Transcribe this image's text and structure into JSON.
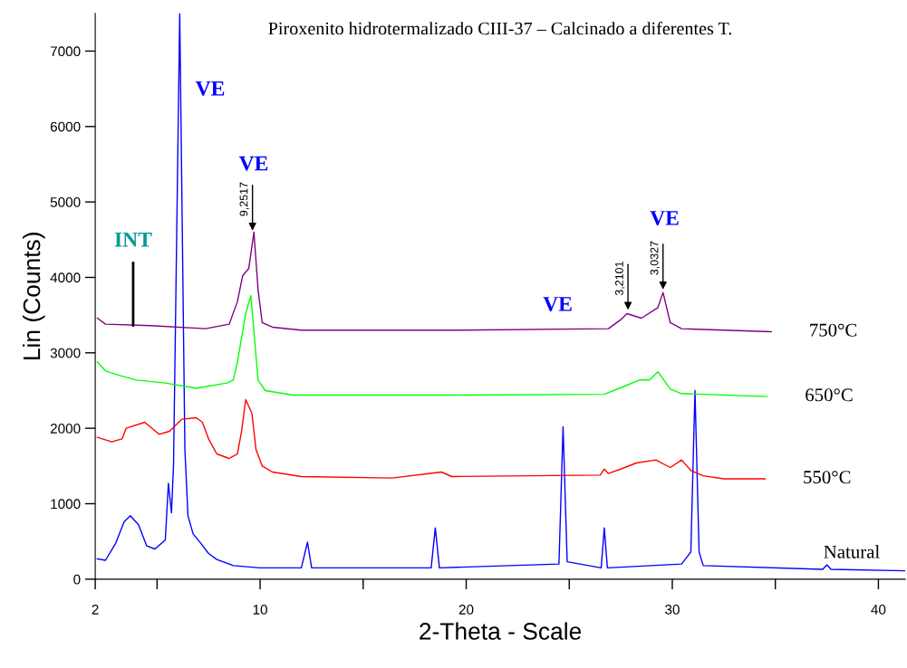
{
  "chart_data": {
    "type": "line",
    "title": "Piroxenito hidrotermalizado CIII-37 – Calcinado a diferentes T.",
    "xlabel": "2-Theta - Scale",
    "ylabel": "Lin (Counts)",
    "xlim": [
      2,
      41.3
    ],
    "ylim": [
      0,
      7500
    ],
    "xticks": [
      2,
      {
        "value": 5,
        "label": null
      },
      10,
      {
        "value": 15,
        "label": null
      },
      20,
      {
        "value": 25,
        "label": null
      },
      30,
      {
        "value": 35,
        "label": null
      },
      40
    ],
    "yticks": [
      0,
      1000,
      2000,
      3000,
      4000,
      5000,
      6000,
      7000
    ],
    "grid": false,
    "legend": false,
    "series": [
      {
        "name": "Natural",
        "color": "#0000ff",
        "x": [
          2.1,
          2.5,
          3.0,
          3.4,
          3.7,
          4.1,
          4.5,
          4.9,
          5.4,
          5.55,
          5.7,
          5.8,
          6.1,
          6.35,
          6.5,
          6.75,
          7.05,
          7.5,
          7.9,
          8.7,
          10,
          12.0,
          12.3,
          12.5,
          18.3,
          18.5,
          18.7,
          24.5,
          24.7,
          24.9,
          26.55,
          26.7,
          26.85,
          30.45,
          30.9,
          31.1,
          31.3,
          31.5,
          37.3,
          37.5,
          37.7,
          41.3
        ],
        "values": [
          270,
          250,
          480,
          760,
          840,
          720,
          440,
          400,
          520,
          1270,
          880,
          1520,
          7500,
          1720,
          840,
          600,
          500,
          340,
          260,
          180,
          150,
          150,
          490,
          150,
          150,
          680,
          150,
          200,
          2020,
          230,
          150,
          680,
          150,
          200,
          360,
          2500,
          360,
          180,
          130,
          190,
          130,
          110
        ]
      },
      {
        "name": "550°C",
        "color": "#ff0000",
        "x": [
          2.1,
          2.8,
          3.3,
          3.5,
          4.4,
          5.1,
          5.6,
          6.2,
          6.9,
          7.2,
          7.5,
          7.9,
          8.5,
          8.9,
          9.1,
          9.3,
          9.6,
          9.8,
          10.1,
          10.6,
          12.0,
          16.4,
          18.8,
          19.3,
          26.5,
          26.7,
          26.9,
          27.7,
          28.25,
          29.2,
          29.9,
          30.45,
          30.9,
          31.5,
          32.5,
          34.5
        ],
        "values": [
          1880,
          1820,
          1860,
          2000,
          2080,
          1920,
          1960,
          2120,
          2140,
          2080,
          1860,
          1660,
          1600,
          1660,
          1960,
          2380,
          2200,
          1720,
          1500,
          1420,
          1360,
          1340,
          1420,
          1360,
          1380,
          1460,
          1400,
          1480,
          1540,
          1580,
          1480,
          1580,
          1440,
          1370,
          1330,
          1330
        ]
      },
      {
        "name": "650°C",
        "color": "#00ff00",
        "x": [
          2.1,
          2.5,
          3.2,
          4.0,
          5.4,
          6.9,
          8.4,
          8.7,
          8.9,
          9.3,
          9.55,
          9.9,
          10.25,
          11.6,
          19.3,
          26.7,
          27.7,
          28.4,
          28.9,
          29.3,
          29.9,
          30.45,
          34.6
        ],
        "values": [
          2880,
          2760,
          2700,
          2640,
          2600,
          2530,
          2600,
          2640,
          2880,
          3520,
          3760,
          2640,
          2500,
          2440,
          2440,
          2450,
          2560,
          2640,
          2640,
          2750,
          2520,
          2460,
          2420
        ]
      },
      {
        "name": "750°C",
        "color": "#800080",
        "x": [
          2.1,
          2.5,
          4.7,
          7.35,
          8.5,
          8.9,
          9.15,
          9.45,
          9.7,
          9.9,
          10.1,
          10.6,
          12.0,
          19.3,
          26.9,
          27.5,
          27.8,
          28.5,
          29.3,
          29.55,
          29.9,
          30.45,
          34.8
        ],
        "values": [
          3460,
          3380,
          3360,
          3320,
          3380,
          3680,
          4020,
          4120,
          4600,
          3840,
          3400,
          3340,
          3300,
          3300,
          3320,
          3440,
          3520,
          3460,
          3600,
          3800,
          3400,
          3320,
          3280
        ]
      }
    ],
    "annotations": [
      "VE",
      {
        "text": "VE",
        "x": 9.63,
        "y": 4620
      },
      "VE",
      "VE",
      {
        "text": "INT",
        "x": 3.84,
        "y": 3360
      },
      {
        "text": "9,2517",
        "x": 9.63,
        "y": 4620
      },
      {
        "text": "3,2101",
        "x": 27.85,
        "y": 3570
      },
      {
        "text": "3,0327",
        "x": 29.55,
        "y": 3840
      }
    ]
  }
}
